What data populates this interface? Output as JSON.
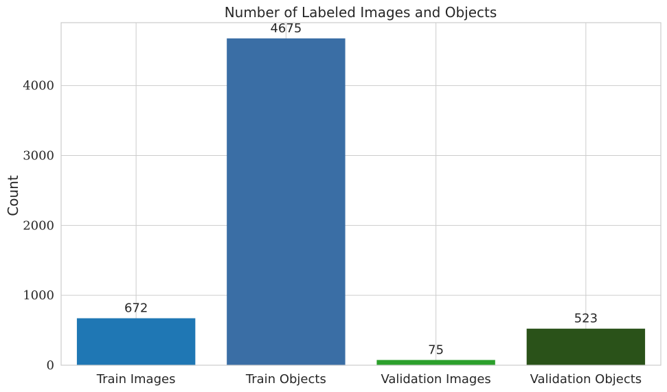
{
  "chart_data": {
    "type": "bar",
    "title": "Number of Labeled Images and Objects",
    "xlabel": "",
    "ylabel": "Count",
    "categories": [
      "Train Images",
      "Train Objects",
      "Validation Images",
      "Validation Objects"
    ],
    "values": [
      672,
      4675,
      75,
      523
    ],
    "value_labels": [
      "672",
      "4675",
      "75",
      "523"
    ],
    "colors": [
      "#1f77b4",
      "#3a6ea5",
      "#2ca02c",
      "#2a5219"
    ],
    "ylim": [
      0,
      4900
    ],
    "yticks": [
      0,
      1000,
      2000,
      3000,
      4000
    ],
    "ytick_labels": [
      "0",
      "1000",
      "2000",
      "3000",
      "4000"
    ],
    "grid": true,
    "legend": "none"
  }
}
